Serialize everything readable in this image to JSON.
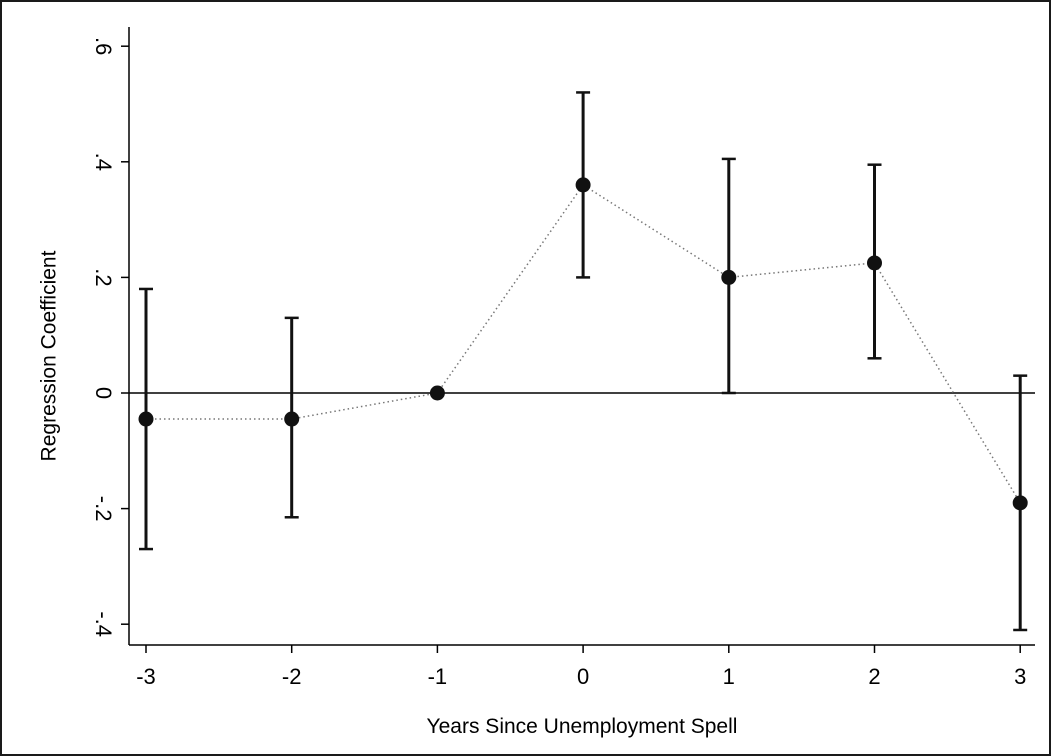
{
  "chart_data": {
    "type": "scatter",
    "title": "",
    "xlabel": "Years Since Unemployment Spell",
    "ylabel": "Regression Coefficient",
    "x": [
      -3,
      -2,
      -1,
      0,
      1,
      2,
      3
    ],
    "series": [
      {
        "values": [
          -0.045,
          -0.045,
          0.0,
          0.36,
          0.2,
          0.225,
          -0.19
        ],
        "ci_lower": [
          -0.27,
          -0.215,
          null,
          0.2,
          0.0,
          0.06,
          -0.41
        ],
        "ci_upper": [
          0.18,
          0.13,
          null,
          0.52,
          0.405,
          0.395,
          0.03
        ]
      }
    ],
    "xlim": [
      -3.1,
      3.1
    ],
    "ylim": [
      -0.44,
      0.6
    ],
    "x_ticks": [
      "-3",
      "-2",
      "-1",
      "0",
      "1",
      "2",
      "3"
    ],
    "x_tick_values": [
      -3,
      -2,
      -1,
      0,
      1,
      2,
      3
    ],
    "y_ticks": [
      "-.4",
      "-.2",
      "0",
      ".2",
      ".4",
      ".6"
    ],
    "y_tick_values": [
      -0.4,
      -0.2,
      0,
      0.2,
      0.4,
      0.6
    ],
    "reference_line": 0,
    "grid": false,
    "legend": "none",
    "colors": {
      "marker": "#111111",
      "connector": "#777777",
      "axis": "#000000"
    }
  }
}
